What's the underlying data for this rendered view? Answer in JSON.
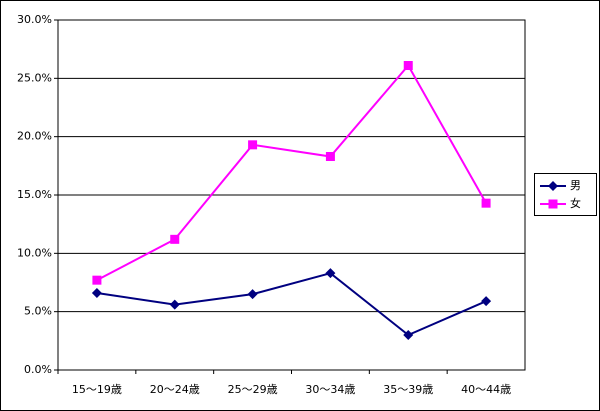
{
  "chart_data": {
    "type": "line",
    "categories": [
      "15〜19歳",
      "20〜24歳",
      "25〜29歳",
      "30〜34歳",
      "35〜39歳",
      "40〜44歳"
    ],
    "series": [
      {
        "name": "男",
        "color": "#000080",
        "marker": "diamond",
        "values": [
          6.6,
          5.6,
          6.5,
          8.3,
          3.0,
          5.9
        ]
      },
      {
        "name": "女",
        "color": "#ff00ff",
        "marker": "square",
        "values": [
          7.7,
          11.2,
          19.3,
          18.3,
          26.1,
          14.3
        ]
      }
    ],
    "ylim": [
      0,
      30
    ],
    "yticks": [
      {
        "value": 0,
        "label": "0.0%"
      },
      {
        "value": 5,
        "label": "5.0%"
      },
      {
        "value": 10,
        "label": "10.0%"
      },
      {
        "value": 15,
        "label": "15.0%"
      },
      {
        "value": 20,
        "label": "20.0%"
      },
      {
        "value": 25,
        "label": "25.0%"
      },
      {
        "value": 30,
        "label": "30.0%"
      }
    ],
    "grid": true,
    "legend": "right"
  }
}
